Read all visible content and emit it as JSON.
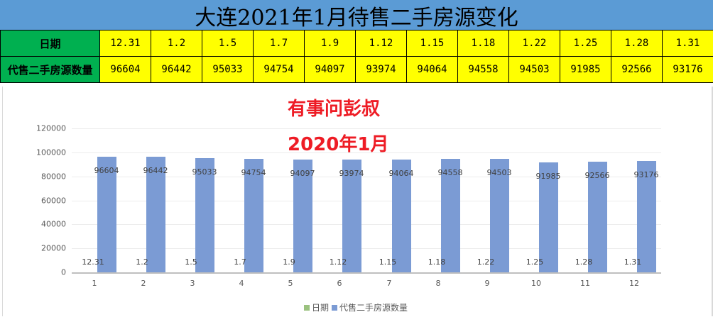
{
  "title": "大连2021年1月待售二手房源变化",
  "table": {
    "row_labels": [
      "日期",
      "代售二手房源数量"
    ],
    "dates": [
      "12.31",
      "1.2",
      "1.5",
      "1.7",
      "1.9",
      "1.12",
      "1.15",
      "1.18",
      "1.22",
      "1.25",
      "1.28",
      "1.31"
    ],
    "counts": [
      "96604",
      "96442",
      "95033",
      "94754",
      "94097",
      "93974",
      "94064",
      "94558",
      "94503",
      "91985",
      "92566",
      "93176"
    ]
  },
  "overlay": {
    "line1": "有事问彭叔",
    "line2": "2020年1月"
  },
  "colors": {
    "title_bg": "#5b9bd5",
    "label_bg": "#00b050",
    "cell_bg": "#ffff00",
    "bar": "#7b9bd4",
    "legend_date": "#9bc27f",
    "overlay_text": "#ee1c25"
  },
  "legend": {
    "items": [
      {
        "label": "日期",
        "color": "#9bc27f"
      },
      {
        "label": "代售二手房源数量",
        "color": "#7b9bd4"
      }
    ]
  },
  "chart_data": {
    "type": "bar",
    "title": "",
    "categories": [
      "1",
      "2",
      "3",
      "4",
      "5",
      "6",
      "7",
      "8",
      "9",
      "10",
      "11",
      "12"
    ],
    "series": [
      {
        "name": "日期",
        "values": [
          12.31,
          1.2,
          1.5,
          1.7,
          1.9,
          1.12,
          1.15,
          1.18,
          1.22,
          1.25,
          1.28,
          1.31
        ],
        "data_labels": [
          "12.31",
          "1.2",
          "1.5",
          "1.7",
          "1.9",
          "1.12",
          "1.15",
          "1.18",
          "1.22",
          "1.25",
          "1.28",
          "1.31"
        ]
      },
      {
        "name": "代售二手房源数量",
        "values": [
          96604,
          96442,
          95033,
          94754,
          94097,
          93974,
          94064,
          94558,
          94503,
          91985,
          92566,
          93176
        ]
      }
    ],
    "xlabel": "",
    "ylabel": "",
    "ylim": [
      0,
      120000
    ],
    "yticks": [
      "0",
      "20000",
      "40000",
      "60000",
      "80000",
      "100000",
      "120000"
    ],
    "grid": true,
    "legend_position": "bottom"
  }
}
